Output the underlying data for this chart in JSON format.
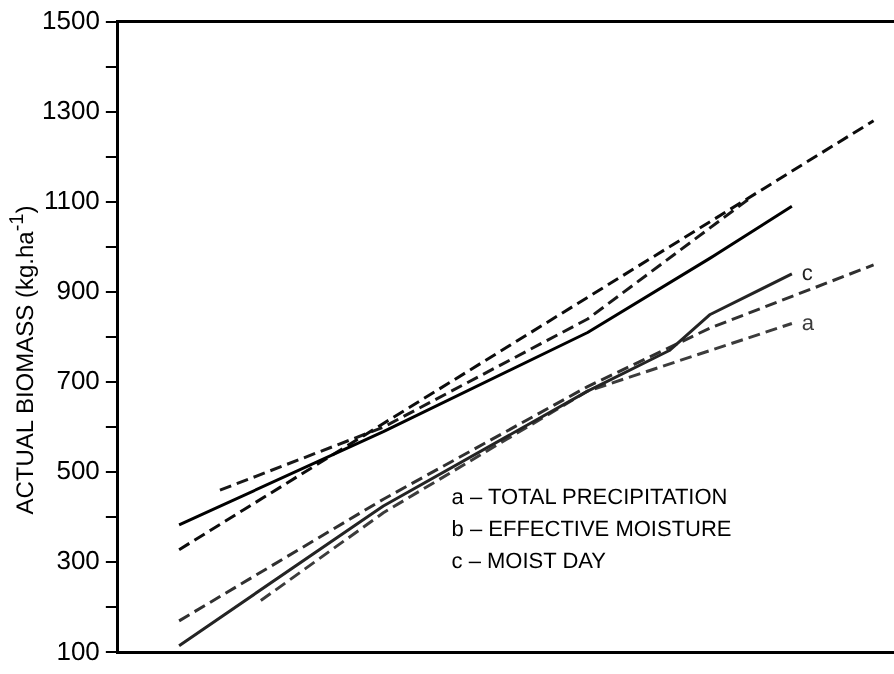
{
  "chart_data": {
    "type": "line",
    "ylabel": "ACTUAL BIOMASS (kg.ha$^{-1}$)",
    "categories": [
      null,
      null,
      null,
      null,
      null,
      null,
      null,
      null,
      null,
      null,
      null,
      null,
      null,
      null,
      null,
      null,
      null,
      null,
      null
    ],
    "ylim": [
      100,
      1500
    ],
    "yticks": [
      100,
      {
        "value": 200,
        "label": null
      },
      300,
      {
        "value": 400,
        "label": null
      },
      500,
      {
        "value": 600,
        "label": null
      },
      700,
      {
        "value": 800,
        "label": null
      },
      900,
      {
        "value": 1000,
        "label": null
      },
      1100,
      {
        "value": 1200,
        "label": null
      },
      1300,
      {
        "value": 1400,
        "label": null
      },
      1500
    ],
    "grid": false,
    "legend": false,
    "tick_labels": "y",
    "marker": "none",
    "series": [
      {
        "color": "#000000",
        "line_style": "solid",
        "values": [
          null,
          383,
          null,
          null,
          null,
          null,
          590,
          null,
          null,
          null,
          null,
          810,
          null,
          null,
          975,
          null,
          1090,
          null,
          null
        ]
      },
      {
        "color": "#0c0c0c",
        "line_style": "dashed",
        "values": [
          null,
          328,
          null,
          null,
          null,
          null,
          608,
          null,
          null,
          null,
          null,
          888,
          null,
          null,
          1056,
          null,
          null,
          null,
          1280
        ]
      },
      {
        "color": "#181818",
        "line_style": "dashed",
        "values": [
          null,
          null,
          460,
          null,
          null,
          null,
          600,
          null,
          null,
          null,
          null,
          840,
          null,
          null,
          null,
          1110,
          null,
          null,
          null
        ]
      },
      {
        "name": "c",
        "color": "#242424",
        "line_style": "solid",
        "values": [
          null,
          115,
          null,
          null,
          null,
          null,
          425,
          null,
          null,
          null,
          null,
          680,
          null,
          770,
          850,
          null,
          940,
          null,
          null
        ]
      },
      {
        "color": "#303030",
        "line_style": "dashed",
        "values": [
          null,
          170,
          null,
          null,
          null,
          null,
          440,
          null,
          null,
          null,
          null,
          690,
          null,
          null,
          820,
          null,
          null,
          null,
          960
        ]
      },
      {
        "name": "a",
        "color": "#3c3c3c",
        "line_style": "dashed",
        "values": [
          null,
          null,
          null,
          215,
          null,
          null,
          410,
          null,
          null,
          null,
          null,
          680,
          null,
          null,
          null,
          null,
          830,
          null,
          null
        ]
      }
    ],
    "annotations": [
      "a – TOTAL PRECIPITATION",
      "b – EFFECTIVE MOISTURE",
      "c – MOIST DAY"
    ]
  }
}
